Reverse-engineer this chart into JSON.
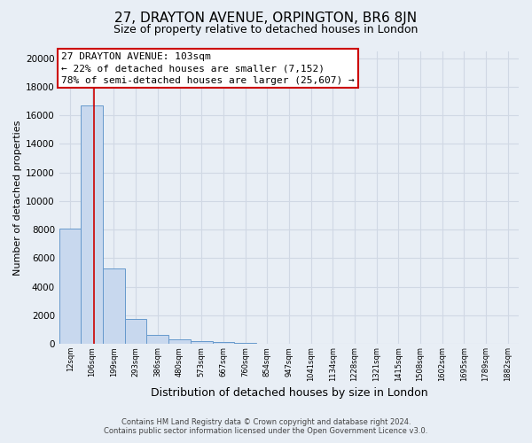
{
  "title": "27, DRAYTON AVENUE, ORPINGTON, BR6 8JN",
  "subtitle": "Size of property relative to detached houses in London",
  "xlabel": "Distribution of detached houses by size in London",
  "ylabel": "Number of detached properties",
  "bar_labels": [
    "12sqm",
    "106sqm",
    "199sqm",
    "293sqm",
    "386sqm",
    "480sqm",
    "573sqm",
    "667sqm",
    "760sqm",
    "854sqm",
    "947sqm",
    "1041sqm",
    "1134sqm",
    "1228sqm",
    "1321sqm",
    "1415sqm",
    "1508sqm",
    "1602sqm",
    "1695sqm",
    "1789sqm",
    "1882sqm"
  ],
  "bar_values": [
    8050,
    16700,
    5300,
    1750,
    620,
    310,
    190,
    110,
    60,
    35,
    20,
    15,
    10,
    8,
    6,
    4,
    3,
    2,
    2,
    1,
    1
  ],
  "bar_color": "#c8d8ee",
  "bar_edge_color": "#6699cc",
  "annotation_line1": "27 DRAYTON AVENUE: 103sqm",
  "annotation_line2": "← 22% of detached houses are smaller (7,152)",
  "annotation_line3": "78% of semi-detached houses are larger (25,607) →",
  "annotation_box_color": "#ffffff",
  "annotation_box_edge": "#cc0000",
  "vline_x": 1.08,
  "vline_color": "#cc0000",
  "grid_color": "#d0d8e4",
  "bg_color": "#e8eef5",
  "footer_line1": "Contains HM Land Registry data © Crown copyright and database right 2024.",
  "footer_line2": "Contains public sector information licensed under the Open Government Licence v3.0.",
  "ylim": [
    0,
    20500
  ],
  "yticks": [
    0,
    2000,
    4000,
    6000,
    8000,
    10000,
    12000,
    14000,
    16000,
    18000,
    20000
  ],
  "title_fontsize": 11,
  "subtitle_fontsize": 9,
  "ylabel_fontsize": 8,
  "xlabel_fontsize": 9,
  "tick_fontsize": 7.5,
  "annot_fontsize": 8
}
